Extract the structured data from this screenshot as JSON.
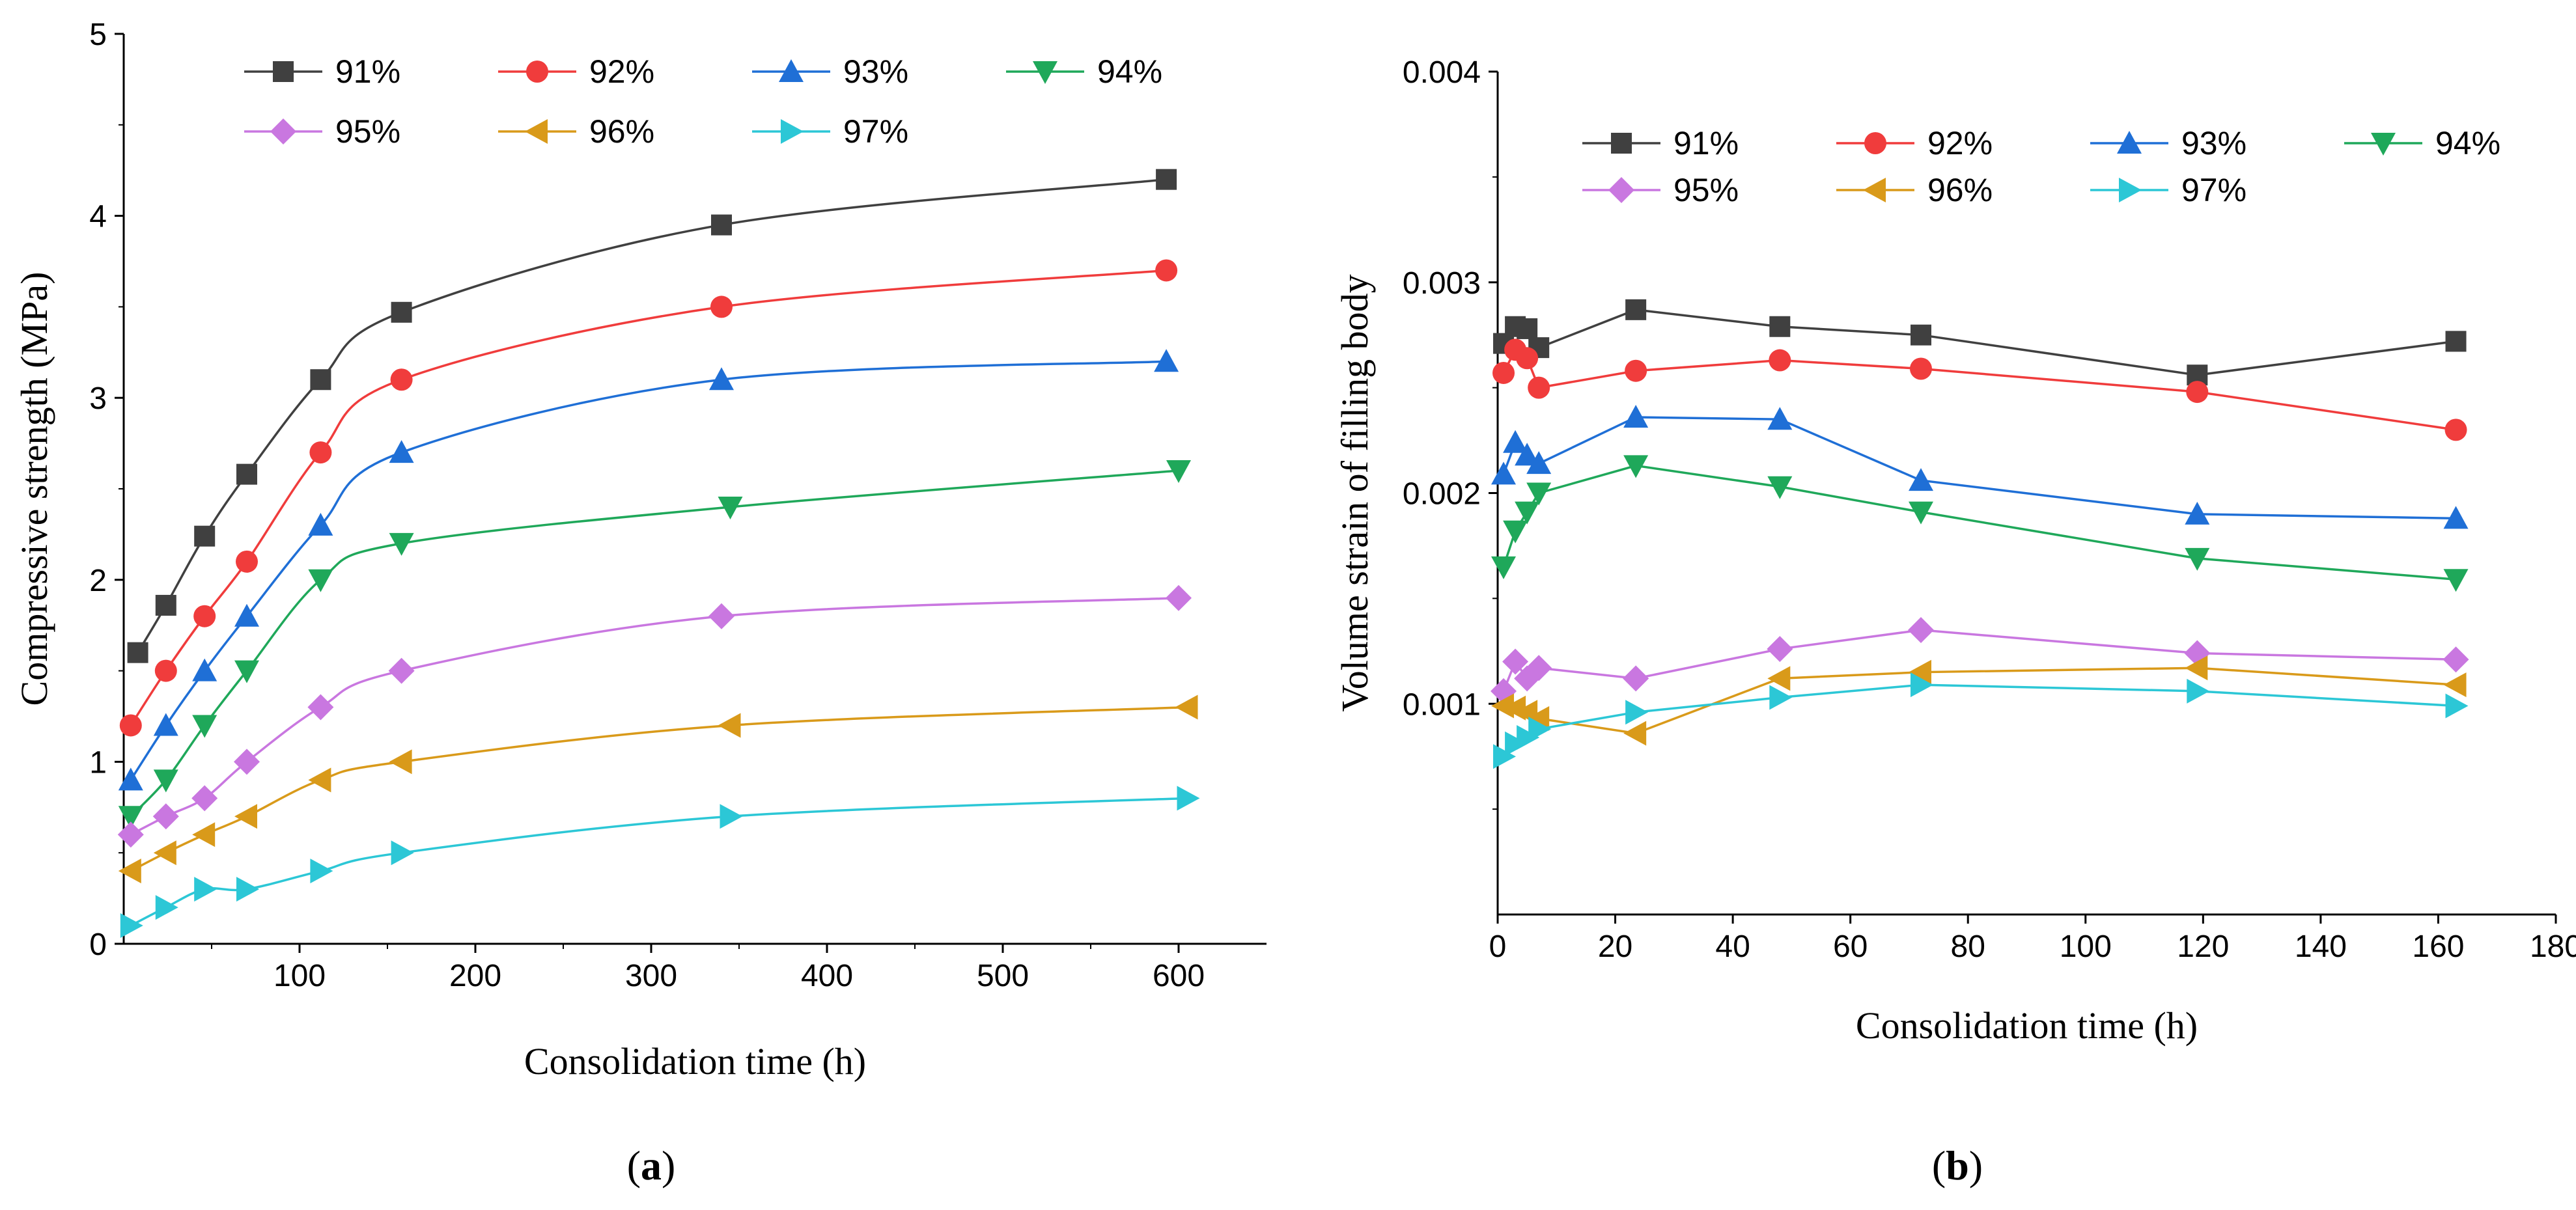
{
  "chart_data": [
    {
      "id": "a",
      "type": "line",
      "caption": "a",
      "xlabel": "Consolidation time (h)",
      "ylabel": "Compressive strength (MPa)",
      "xlim": [
        0,
        650
      ],
      "ylim": [
        0,
        5
      ],
      "xticks": [
        100,
        200,
        300,
        400,
        500,
        600
      ],
      "yticks": [
        0,
        1,
        2,
        3,
        4,
        5
      ],
      "smooth": true,
      "legend_position": "top-left",
      "series": [
        {
          "name": "91%",
          "color": "#404040",
          "marker": "square",
          "x": [
            8,
            24,
            46,
            70,
            112,
            158,
            340,
            593
          ],
          "y": [
            1.6,
            1.86,
            2.24,
            2.58,
            3.1,
            3.47,
            3.95,
            4.2
          ]
        },
        {
          "name": "92%",
          "color": "#f03c3c",
          "marker": "circle",
          "x": [
            4,
            24,
            46,
            70,
            112,
            158,
            340,
            593
          ],
          "y": [
            1.2,
            1.5,
            1.8,
            2.1,
            2.7,
            3.1,
            3.5,
            3.7
          ]
        },
        {
          "name": "93%",
          "color": "#1f6fd6",
          "marker": "triangle-up",
          "x": [
            4,
            24,
            46,
            70,
            112,
            158,
            340,
            593
          ],
          "y": [
            0.9,
            1.2,
            1.5,
            1.8,
            2.3,
            2.7,
            3.1,
            3.2
          ]
        },
        {
          "name": "94%",
          "color": "#1fa85a",
          "marker": "triangle-down",
          "x": [
            4,
            24,
            46,
            70,
            112,
            158,
            345,
            600
          ],
          "y": [
            0.7,
            0.9,
            1.2,
            1.5,
            2.0,
            2.2,
            2.4,
            2.6
          ]
        },
        {
          "name": "95%",
          "color": "#c977e0",
          "marker": "diamond",
          "x": [
            4,
            24,
            46,
            70,
            112,
            158,
            340,
            600
          ],
          "y": [
            0.6,
            0.7,
            0.8,
            1.0,
            1.3,
            1.5,
            1.8,
            1.9
          ]
        },
        {
          "name": "96%",
          "color": "#d99a1a",
          "marker": "triangle-left",
          "x": [
            4,
            24,
            46,
            70,
            112,
            158,
            345,
            605
          ],
          "y": [
            0.4,
            0.5,
            0.6,
            0.7,
            0.9,
            1.0,
            1.2,
            1.3
          ]
        },
        {
          "name": "97%",
          "color": "#2cc7d6",
          "marker": "triangle-right",
          "x": [
            4,
            24,
            46,
            70,
            112,
            158,
            345,
            605
          ],
          "y": [
            0.1,
            0.2,
            0.3,
            0.3,
            0.4,
            0.5,
            0.7,
            0.8
          ]
        }
      ]
    },
    {
      "id": "b",
      "type": "line",
      "caption": "b",
      "xlabel": "Consolidation time (h)",
      "ylabel": "Volume strain of filling body",
      "xlim": [
        0,
        180
      ],
      "ylim": [
        0,
        0.004
      ],
      "xticks": [
        0,
        20,
        40,
        60,
        80,
        100,
        120,
        140,
        160,
        180
      ],
      "xtick_labels": [
        "0",
        "20",
        "40",
        "60",
        "80",
        "100",
        "120",
        "140",
        "160",
        "180"
      ],
      "yticks": [
        0.001,
        0.002,
        0.003,
        0.004
      ],
      "ytick_labels": [
        "0.001",
        "0.002",
        "0.003",
        "0.004"
      ],
      "smooth": false,
      "legend_position": "top",
      "series": [
        {
          "name": "91%",
          "color": "#404040",
          "marker": "square",
          "x": [
            1,
            3,
            5,
            7,
            23.5,
            48,
            72,
            119,
            163
          ],
          "y": [
            0.00271,
            0.00279,
            0.00278,
            0.00269,
            0.00287,
            0.00279,
            0.00275,
            0.00256,
            0.00272
          ]
        },
        {
          "name": "92%",
          "color": "#f03c3c",
          "marker": "circle",
          "x": [
            1,
            3,
            5,
            7,
            23.5,
            48,
            72,
            119,
            163
          ],
          "y": [
            0.00257,
            0.00268,
            0.00264,
            0.0025,
            0.00258,
            0.00263,
            0.00259,
            0.00248,
            0.0023
          ]
        },
        {
          "name": "93%",
          "color": "#1f6fd6",
          "marker": "triangle-up",
          "x": [
            1,
            3,
            5,
            7,
            23.5,
            48,
            72,
            119,
            163
          ],
          "y": [
            0.00209,
            0.00224,
            0.00218,
            0.00214,
            0.00236,
            0.00235,
            0.00206,
            0.0019,
            0.00188
          ]
        },
        {
          "name": "94%",
          "color": "#1fa85a",
          "marker": "triangle-down",
          "x": [
            1,
            3,
            5,
            7,
            23.5,
            48,
            72,
            119,
            163
          ],
          "y": [
            0.00165,
            0.00182,
            0.00191,
            0.002,
            0.00213,
            0.00203,
            0.00191,
            0.00169,
            0.00159
          ]
        },
        {
          "name": "95%",
          "color": "#c977e0",
          "marker": "diamond",
          "x": [
            1,
            3,
            5,
            7,
            23.5,
            48,
            72,
            119,
            163
          ],
          "y": [
            0.00106,
            0.0012,
            0.00112,
            0.00117,
            0.00112,
            0.00126,
            0.00135,
            0.00124,
            0.00121
          ]
        },
        {
          "name": "96%",
          "color": "#d99a1a",
          "marker": "triangle-left",
          "x": [
            1,
            3,
            5,
            7,
            23.5,
            48,
            72,
            119,
            163
          ],
          "y": [
            0.00099,
            0.00098,
            0.00096,
            0.00093,
            0.00086,
            0.00112,
            0.00115,
            0.00117,
            0.00109
          ]
        },
        {
          "name": "97%",
          "color": "#2cc7d6",
          "marker": "triangle-right",
          "x": [
            1,
            3,
            5,
            7,
            23.5,
            48,
            72,
            119,
            163
          ],
          "y": [
            0.00075,
            0.00081,
            0.00084,
            0.00088,
            0.00096,
            0.00103,
            0.00109,
            0.00106,
            0.00099
          ]
        }
      ]
    }
  ]
}
